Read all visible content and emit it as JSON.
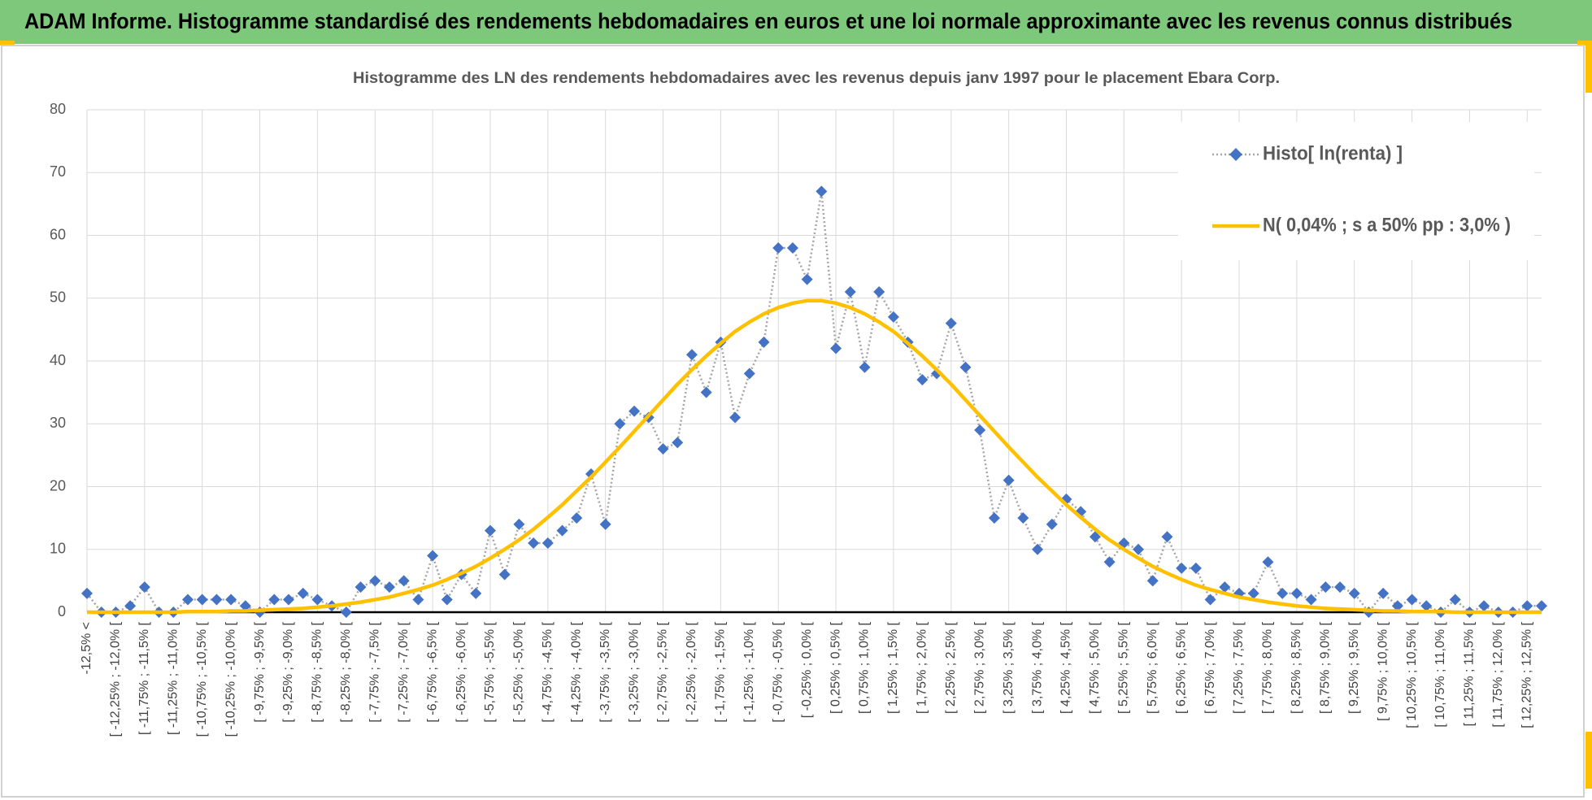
{
  "header": {
    "title": "ADAM Informe. Histogramme standardisé des rendements hebdomadaires en euros et une loi normale approximante avec les revenus connus distribués"
  },
  "chart_data": {
    "type": "line",
    "title": "Histogramme  des LN des rendements hebdomadaires avec les revenus depuis janv 1997 pour le placement Ebara Corp.",
    "categories": [
      "-12,5% <",
      null,
      "[ -12,25% ; -12,0% [",
      null,
      "[ -11,75% ; -11,5% [",
      null,
      "[ -11,25% ; -11,0% [",
      null,
      "[ -10,75% ; -10,5% [",
      null,
      "[ -10,25% ; -10,0% [",
      null,
      "[ -9,75% ; -9,5% [",
      null,
      "[ -9,25% ; -9,0% [",
      null,
      "[ -8,75% ; -8,5% [",
      null,
      "[ -8,25% ; -8,0% [",
      null,
      "[ -7,75% ; -7,5% [",
      null,
      "[ -7,25% ; -7,0% [",
      null,
      "[ -6,75% ; -6,5% [",
      null,
      "[ -6,25% ; -6,0% [",
      null,
      "[ -5,75% ; -5,5% [",
      null,
      "[ -5,25% ; -5,0% [",
      null,
      "[ -4,75% ; -4,5% [",
      null,
      "[ -4,25% ; -4,0% [",
      null,
      "[ -3,75% ; -3,5% [",
      null,
      "[ -3,25% ; -3,0% [",
      null,
      "[ -2,75% ; -2,5% [",
      null,
      "[ -2,25% ; -2,0% [",
      null,
      "[ -1,75% ; -1,5% [",
      null,
      "[ -1,25% ; -1,0% [",
      null,
      "[ -0,75% ; -0,5% [",
      null,
      "[ -0,25% ; 0,0% [",
      null,
      "[ 0,25% ; 0,5% [",
      null,
      "[ 0,75% ; 1,0% [",
      null,
      "[ 1,25% ; 1,5% [",
      null,
      "[ 1,75% ; 2,0% [",
      null,
      "[ 2,25% ; 2,5% [",
      null,
      "[ 2,75% ; 3,0% [",
      null,
      "[ 3,25% ; 3,5% [",
      null,
      "[ 3,75% ; 4,0% [",
      null,
      "[ 4,25% ; 4,5% [",
      null,
      "[ 4,75% ; 5,0% [",
      null,
      "[ 5,25% ; 5,5% [",
      null,
      "[ 5,75% ; 6,0% [",
      null,
      "[ 6,25% ; 6,5% [",
      null,
      "[ 6,75% ; 7,0% [",
      null,
      "[ 7,25% ; 7,5% [",
      null,
      "[ 7,75% ; 8,0% [",
      null,
      "[ 8,25% ; 8,5% [",
      null,
      "[ 8,75% ; 9,0% [",
      null,
      "[ 9,25% ; 9,5% [",
      null,
      "[ 9,75% ; 10,0% [",
      null,
      "[ 10,25% ; 10,5% [",
      null,
      "[ 10,75% ; 11,0% [",
      null,
      "[ 11,25% ; 11,5% [",
      null,
      "[ 11,75% ; 12,0% [",
      null,
      "[ 12,25% ; 12,5% [",
      null
    ],
    "series": [
      {
        "name": "Histo[ ln(renta) ]",
        "color": "#4472c4",
        "line_color": "#a5a5a5",
        "line_style": "dotted",
        "marker": "diamond",
        "values": [
          3,
          0,
          0,
          1,
          4,
          0,
          0,
          2,
          2,
          2,
          2,
          1,
          0,
          2,
          2,
          3,
          2,
          1,
          0,
          4,
          5,
          4,
          5,
          2,
          9,
          2,
          6,
          3,
          13,
          6,
          14,
          11,
          11,
          13,
          15,
          22,
          14,
          30,
          32,
          31,
          26,
          27,
          41,
          35,
          43,
          31,
          38,
          43,
          58,
          58,
          53,
          67,
          42,
          51,
          39,
          51,
          47,
          43,
          37,
          38,
          46,
          39,
          29,
          15,
          21,
          15,
          10,
          14,
          18,
          16,
          12,
          8,
          11,
          10,
          5,
          12,
          7,
          7,
          2,
          4,
          3,
          3,
          8,
          3,
          3,
          2,
          4,
          4,
          3,
          0,
          3,
          1,
          2,
          1,
          0,
          2,
          0,
          1,
          0,
          0,
          1,
          1
        ]
      },
      {
        "name": "N( 0,04% ; s a 50% pp : 3,0% )",
        "color": "#ffc000",
        "line_style": "solid",
        "marker": "none",
        "values": [
          0,
          0,
          0,
          0,
          0,
          0,
          0,
          0.1,
          0.1,
          0.1,
          0.2,
          0.2,
          0.3,
          0.4,
          0.5,
          0.6,
          0.8,
          1.0,
          1.3,
          1.6,
          2.0,
          2.4,
          3.0,
          3.6,
          4.3,
          5.2,
          6.2,
          7.3,
          8.6,
          10.0,
          11.5,
          13.2,
          15.1,
          17.1,
          19.3,
          21.5,
          23.9,
          26.3,
          28.8,
          31.3,
          33.8,
          36.3,
          38.6,
          40.8,
          42.8,
          44.7,
          46.2,
          47.5,
          48.5,
          49.2,
          49.6,
          49.6,
          49.2,
          48.5,
          47.5,
          46.2,
          44.7,
          42.8,
          40.8,
          38.6,
          36.3,
          33.8,
          31.3,
          28.8,
          26.3,
          23.9,
          21.5,
          19.3,
          17.1,
          15.1,
          13.2,
          11.5,
          10.0,
          8.6,
          7.3,
          6.2,
          5.2,
          4.3,
          3.6,
          3.0,
          2.4,
          2.0,
          1.6,
          1.3,
          1.0,
          0.8,
          0.6,
          0.5,
          0.4,
          0.3,
          0.2,
          0.2,
          0.1,
          0.1,
          0.1,
          0,
          0,
          0,
          0,
          0,
          0,
          0
        ]
      }
    ],
    "ylim": [
      0,
      80
    ],
    "yticks": [
      0,
      10,
      20,
      30,
      40,
      50,
      60,
      70,
      80
    ],
    "grid": true,
    "legend": "upper right"
  }
}
